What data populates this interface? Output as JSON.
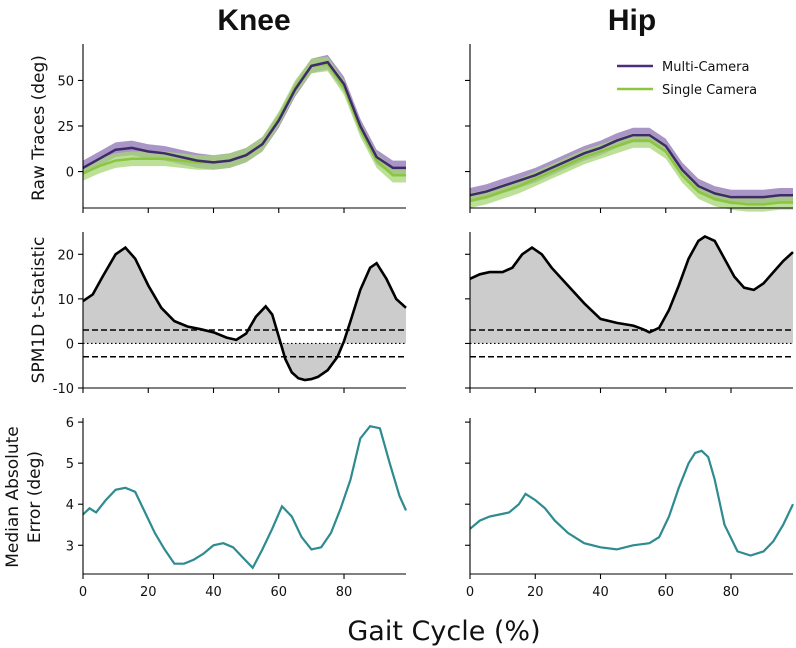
{
  "figure": {
    "col_titles": [
      "Knee",
      "Hip"
    ],
    "row_ylabels": [
      [
        "Raw Traces (deg)"
      ],
      [
        "SPM1D t-Statistic"
      ],
      [
        "Median Absolute",
        "Error (deg)"
      ]
    ],
    "xlabel": "Gait Cycle (%)",
    "legend": [
      {
        "label": "Multi-Camera",
        "color": "#4a2f7a"
      },
      {
        "label": "Single Camera",
        "color": "#8cc63f"
      }
    ],
    "colors": {
      "multi_line": "#3f2a6b",
      "multi_band": "#7b5ea7",
      "single_line": "#8cc63f",
      "single_band": "#a7d676",
      "overlap": "#808080",
      "spm_fill": "#cccccc",
      "mae_line": "#2e8b8f"
    }
  },
  "chart_data": [
    {
      "type": "line",
      "panel": "knee-raw",
      "xlim": [
        0,
        99
      ],
      "ylim": [
        -20,
        70
      ],
      "yticks": [
        0,
        25,
        50
      ],
      "xticks": [
        0,
        20,
        40,
        60,
        80
      ],
      "x": [
        0,
        5,
        10,
        15,
        20,
        25,
        30,
        35,
        40,
        45,
        50,
        55,
        60,
        65,
        70,
        75,
        80,
        85,
        90,
        95,
        99
      ],
      "series": [
        {
          "name": "Multi-Camera",
          "mean": [
            2,
            7,
            12,
            13,
            11,
            10,
            8,
            6,
            5,
            6,
            9,
            15,
            28,
            45,
            58,
            60,
            48,
            25,
            8,
            2,
            2
          ],
          "band": 4
        },
        {
          "name": "Single Camera",
          "mean": [
            -1,
            3,
            6,
            7,
            7,
            7,
            6,
            5,
            5,
            6,
            9,
            15,
            29,
            46,
            58,
            59,
            46,
            23,
            6,
            -2,
            -2
          ],
          "band": 4
        }
      ]
    },
    {
      "type": "line",
      "panel": "hip-raw",
      "xlim": [
        0,
        99
      ],
      "ylim": [
        -20,
        70
      ],
      "x": [
        0,
        5,
        10,
        15,
        20,
        25,
        30,
        35,
        40,
        45,
        50,
        55,
        60,
        65,
        70,
        75,
        80,
        85,
        90,
        95,
        99
      ],
      "series": [
        {
          "name": "Multi-Camera",
          "mean": [
            -13,
            -11,
            -8,
            -5,
            -2,
            2,
            6,
            10,
            13,
            17,
            20,
            20,
            14,
            1,
            -8,
            -12,
            -14,
            -14,
            -14,
            -13,
            -13
          ],
          "band": 4
        },
        {
          "name": "Single Camera",
          "mean": [
            -16,
            -14,
            -11,
            -8,
            -4,
            0,
            4,
            8,
            11,
            14,
            17,
            17,
            11,
            -2,
            -11,
            -15,
            -17,
            -18,
            -18,
            -17,
            -17
          ],
          "band": 4
        }
      ]
    },
    {
      "type": "area",
      "panel": "knee-spm",
      "xlim": [
        0,
        99
      ],
      "ylim": [
        -10,
        25
      ],
      "yticks": [
        -10,
        0,
        10,
        20
      ],
      "xticks": [
        0,
        20,
        40,
        60,
        80
      ],
      "threshold": 3,
      "x": [
        0,
        3,
        6,
        10,
        13,
        16,
        20,
        24,
        28,
        32,
        36,
        40,
        44,
        47,
        50,
        53,
        56,
        58,
        60,
        62,
        64,
        66,
        68,
        70,
        72,
        75,
        78,
        80,
        82,
        85,
        88,
        90,
        93,
        96,
        99
      ],
      "values": [
        9.5,
        11,
        15,
        20,
        21.5,
        19,
        13,
        8,
        5,
        3.8,
        3.2,
        2.5,
        1.3,
        0.8,
        2.2,
        6,
        8.3,
        6.5,
        1.5,
        -3.5,
        -6.5,
        -7.8,
        -8.2,
        -8,
        -7.5,
        -6,
        -3,
        0.5,
        5,
        12,
        17,
        18,
        14.5,
        10,
        8
      ]
    },
    {
      "type": "area",
      "panel": "hip-spm",
      "xlim": [
        0,
        99
      ],
      "ylim": [
        -10,
        25
      ],
      "threshold": 3,
      "x": [
        0,
        3,
        6,
        10,
        13,
        16,
        19,
        22,
        25,
        30,
        35,
        40,
        45,
        50,
        53,
        55,
        58,
        61,
        64,
        67,
        70,
        72,
        75,
        78,
        81,
        84,
        87,
        90,
        93,
        96,
        99
      ],
      "values": [
        14.5,
        15.5,
        16,
        16,
        17,
        20,
        21.5,
        20,
        17,
        13,
        9,
        5.5,
        4.6,
        4,
        3.2,
        2.5,
        3.5,
        7.5,
        13,
        19,
        23,
        24,
        23,
        19,
        15,
        12.5,
        12,
        13.5,
        16,
        18.5,
        20.5
      ]
    },
    {
      "type": "line",
      "panel": "knee-mae",
      "xlim": [
        0,
        99
      ],
      "ylim": [
        2.3,
        6.1
      ],
      "yticks": [
        3,
        4,
        5,
        6
      ],
      "xticks": [
        0,
        20,
        40,
        60,
        80
      ],
      "x": [
        0,
        2,
        4,
        7,
        10,
        13,
        16,
        19,
        22,
        25,
        28,
        31,
        34,
        37,
        40,
        43,
        46,
        49,
        52,
        55,
        58,
        61,
        64,
        67,
        70,
        73,
        76,
        79,
        82,
        85,
        88,
        91,
        94,
        97,
        99
      ],
      "values": [
        3.75,
        3.9,
        3.8,
        4.1,
        4.35,
        4.4,
        4.3,
        3.8,
        3.3,
        2.9,
        2.55,
        2.55,
        2.65,
        2.8,
        3.0,
        3.05,
        2.95,
        2.7,
        2.45,
        2.9,
        3.4,
        3.95,
        3.7,
        3.2,
        2.9,
        2.95,
        3.3,
        3.9,
        4.6,
        5.6,
        5.9,
        5.85,
        5.0,
        4.2,
        3.85
      ]
    },
    {
      "type": "line",
      "panel": "hip-mae",
      "xlim": [
        0,
        99
      ],
      "ylim": [
        2.3,
        6.1
      ],
      "x": [
        0,
        3,
        6,
        9,
        12,
        15,
        17,
        20,
        23,
        26,
        30,
        35,
        40,
        45,
        50,
        55,
        58,
        61,
        64,
        67,
        69,
        71,
        73,
        75,
        78,
        82,
        86,
        90,
        93,
        96,
        99
      ],
      "values": [
        3.4,
        3.6,
        3.7,
        3.75,
        3.8,
        4.0,
        4.25,
        4.1,
        3.9,
        3.6,
        3.3,
        3.05,
        2.95,
        2.9,
        3.0,
        3.05,
        3.2,
        3.7,
        4.4,
        5.0,
        5.25,
        5.3,
        5.15,
        4.6,
        3.5,
        2.85,
        2.75,
        2.85,
        3.1,
        3.5,
        4.0
      ]
    }
  ]
}
